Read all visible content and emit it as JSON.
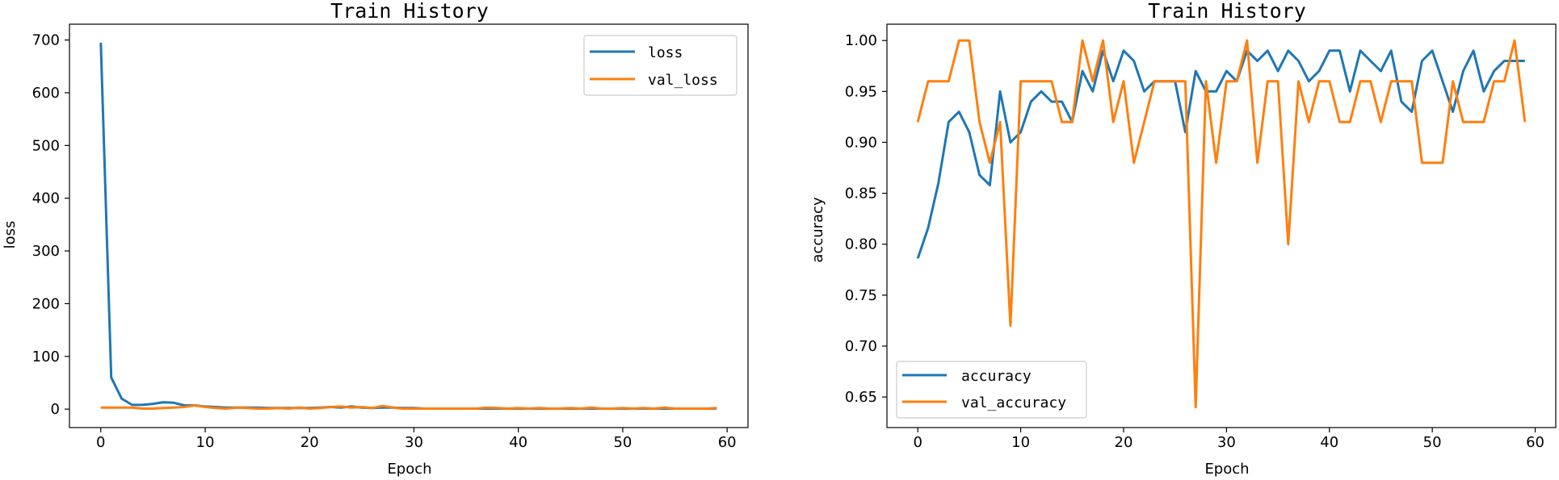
{
  "colors": {
    "series1": "#1f77b4",
    "series2": "#ff7f0e",
    "axis": "#000000",
    "legend_border": "#cccccc"
  },
  "chart_data": [
    {
      "type": "line",
      "title": "Train History",
      "xlabel": "Epoch",
      "ylabel": "loss",
      "xlim": [
        -3,
        62
      ],
      "ylim": [
        -35,
        730
      ],
      "xticks": [
        0,
        10,
        20,
        30,
        40,
        50,
        60
      ],
      "yticks": [
        0,
        100,
        200,
        300,
        400,
        500,
        600,
        700
      ],
      "legend_loc": "upper right",
      "series": [
        {
          "name": "loss",
          "color": "#1f77b4",
          "x": [
            0,
            1,
            2,
            3,
            4,
            5,
            6,
            7,
            8,
            9,
            10,
            11,
            12,
            13,
            14,
            15,
            16,
            17,
            18,
            19,
            20,
            21,
            22,
            23,
            24,
            25,
            26,
            27,
            28,
            29,
            30,
            31,
            32,
            33,
            34,
            35,
            36,
            37,
            38,
            39,
            40,
            41,
            42,
            43,
            44,
            45,
            46,
            47,
            48,
            49,
            50,
            51,
            52,
            53,
            54,
            55,
            56,
            57,
            58,
            59
          ],
          "y": [
            695,
            60,
            20,
            8,
            8,
            10,
            13,
            12,
            7,
            7,
            5,
            4,
            3,
            3,
            3,
            3,
            2,
            2,
            2,
            2,
            2,
            3,
            4,
            3,
            5,
            3,
            2,
            3,
            3,
            2,
            2,
            1,
            1,
            1,
            1,
            1,
            1,
            1,
            1,
            1,
            1,
            1,
            1,
            1,
            1,
            1,
            1,
            1,
            1,
            1,
            1,
            1,
            1,
            1,
            1,
            1,
            1,
            1,
            1,
            1
          ]
        },
        {
          "name": "val_loss",
          "color": "#ff7f0e",
          "x": [
            0,
            1,
            2,
            3,
            4,
            5,
            6,
            7,
            8,
            9,
            10,
            11,
            12,
            13,
            14,
            15,
            16,
            17,
            18,
            19,
            20,
            21,
            22,
            23,
            24,
            25,
            26,
            27,
            28,
            29,
            30,
            31,
            32,
            33,
            34,
            35,
            36,
            37,
            38,
            39,
            40,
            41,
            42,
            43,
            44,
            45,
            46,
            47,
            48,
            49,
            50,
            51,
            52,
            53,
            54,
            55,
            56,
            57,
            58,
            59
          ],
          "y": [
            3,
            3,
            3,
            3,
            1,
            1,
            2,
            3,
            4,
            7,
            4,
            2,
            1,
            3,
            2,
            1,
            1,
            2,
            1,
            3,
            1,
            2,
            4,
            5,
            3,
            4,
            2,
            6,
            3,
            1,
            1,
            1,
            1,
            1,
            1,
            1,
            1,
            3,
            2,
            1,
            2,
            1,
            2,
            1,
            1,
            2,
            1,
            3,
            1,
            1,
            2,
            1,
            2,
            1,
            3,
            1,
            1,
            1,
            1,
            2
          ]
        }
      ]
    },
    {
      "type": "line",
      "title": "Train History",
      "xlabel": "Epoch",
      "ylabel": "accuracy",
      "xlim": [
        -3,
        62
      ],
      "ylim": [
        0.62,
        1.016
      ],
      "xticks": [
        0,
        10,
        20,
        30,
        40,
        50,
        60
      ],
      "yticks": [
        0.65,
        0.7,
        0.75,
        0.8,
        0.85,
        0.9,
        0.95,
        1.0
      ],
      "legend_loc": "lower left",
      "series": [
        {
          "name": "accuracy",
          "color": "#1f77b4",
          "x": [
            0,
            1,
            2,
            3,
            4,
            5,
            6,
            7,
            8,
            9,
            10,
            11,
            12,
            13,
            14,
            15,
            16,
            17,
            18,
            19,
            20,
            21,
            22,
            23,
            24,
            25,
            26,
            27,
            28,
            29,
            30,
            31,
            32,
            33,
            34,
            35,
            36,
            37,
            38,
            39,
            40,
            41,
            42,
            43,
            44,
            45,
            46,
            47,
            48,
            49,
            50,
            51,
            52,
            53,
            54,
            55,
            56,
            57,
            58,
            59
          ],
          "y": [
            0.786,
            0.816,
            0.86,
            0.92,
            0.93,
            0.91,
            0.868,
            0.858,
            0.95,
            0.9,
            0.91,
            0.94,
            0.95,
            0.94,
            0.94,
            0.92,
            0.97,
            0.95,
            0.99,
            0.96,
            0.99,
            0.98,
            0.95,
            0.96,
            0.96,
            0.96,
            0.91,
            0.97,
            0.95,
            0.95,
            0.97,
            0.96,
            0.99,
            0.98,
            0.99,
            0.97,
            0.99,
            0.98,
            0.96,
            0.97,
            0.99,
            0.99,
            0.95,
            0.99,
            0.98,
            0.97,
            0.99,
            0.94,
            0.93,
            0.98,
            0.99,
            0.96,
            0.93,
            0.97,
            0.99,
            0.95,
            0.97,
            0.98,
            0.98,
            0.98
          ]
        },
        {
          "name": "val_accuracy",
          "color": "#ff7f0e",
          "x": [
            0,
            1,
            2,
            3,
            4,
            5,
            6,
            7,
            8,
            9,
            10,
            11,
            12,
            13,
            14,
            15,
            16,
            17,
            18,
            19,
            20,
            21,
            22,
            23,
            24,
            25,
            26,
            27,
            28,
            29,
            30,
            31,
            32,
            33,
            34,
            35,
            36,
            37,
            38,
            39,
            40,
            41,
            42,
            43,
            44,
            45,
            46,
            47,
            48,
            49,
            50,
            51,
            52,
            53,
            54,
            55,
            56,
            57,
            58,
            59
          ],
          "y": [
            0.92,
            0.96,
            0.96,
            0.96,
            1.0,
            1.0,
            0.92,
            0.88,
            0.92,
            0.72,
            0.96,
            0.96,
            0.96,
            0.96,
            0.92,
            0.92,
            1.0,
            0.96,
            1.0,
            0.92,
            0.96,
            0.88,
            0.92,
            0.96,
            0.96,
            0.96,
            0.96,
            0.64,
            0.96,
            0.88,
            0.96,
            0.96,
            1.0,
            0.88,
            0.96,
            0.96,
            0.8,
            0.96,
            0.92,
            0.96,
            0.96,
            0.92,
            0.92,
            0.96,
            0.96,
            0.92,
            0.96,
            0.96,
            0.96,
            0.88,
            0.88,
            0.88,
            0.96,
            0.92,
            0.92,
            0.92,
            0.96,
            0.96,
            1.0,
            0.92
          ]
        }
      ]
    }
  ]
}
